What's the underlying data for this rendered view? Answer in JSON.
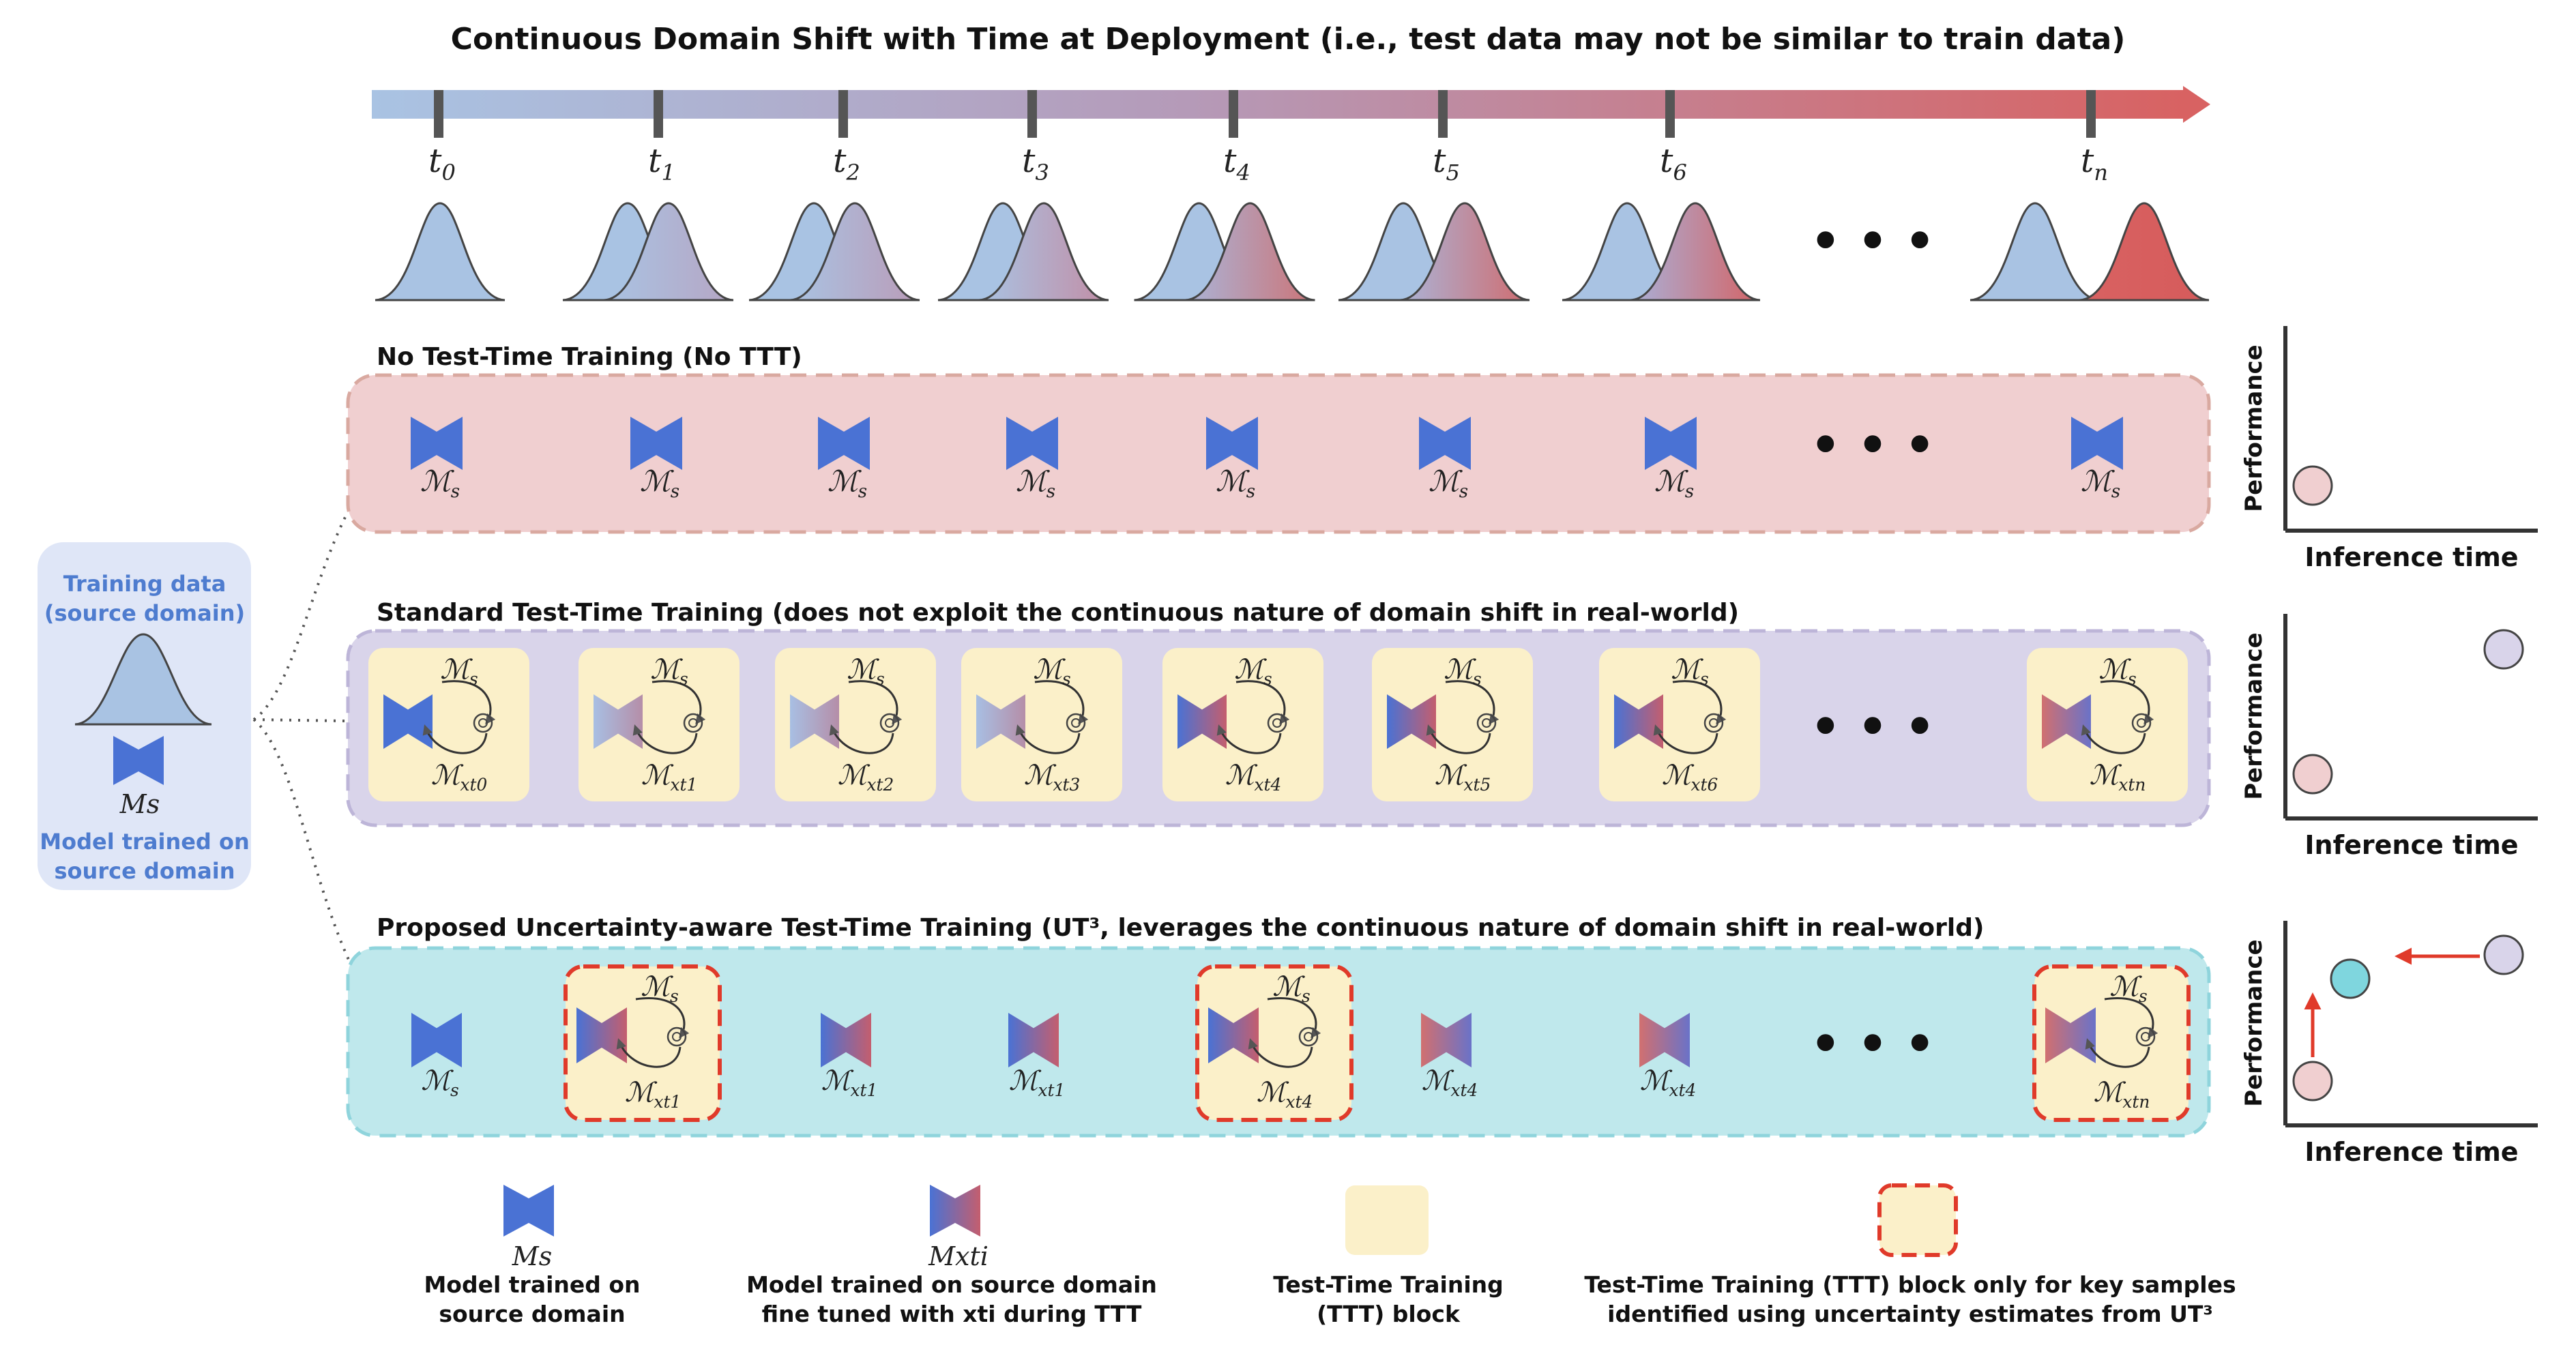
{
  "title": "Continuous Domain Shift with Time at Deployment (i.e., test data may not be similar to train data)",
  "timeline": {
    "ticks": [
      "t0",
      "t1",
      "t2",
      "t3",
      "t4",
      "t5",
      "t6",
      "tn"
    ],
    "ellipsis": "• • •"
  },
  "source_box": {
    "training_data": "Training data",
    "training_sub": "(source domain)",
    "model_symbol": "Ms",
    "model_line1": "Model trained on",
    "model_line2": "source domain"
  },
  "rows": [
    {
      "title": "No Test-Time Training (No TTT)",
      "model_labels": [
        "Ms",
        "Ms",
        "Ms",
        "Ms",
        "Ms",
        "Ms",
        "Ms",
        "Ms"
      ]
    },
    {
      "title": "Standard Test-Time Training (does not exploit the continuous nature of domain shift in real-world)",
      "top_labels": [
        "Ms",
        "Ms",
        "Ms",
        "Ms",
        "Ms",
        "Ms",
        "Ms",
        "Ms"
      ],
      "bottom_labels": [
        "Mxt0",
        "Mxt1",
        "Mxt2",
        "Mxt3",
        "Mxt4",
        "Mxt5",
        "Mxt6",
        "Mxtn"
      ]
    },
    {
      "title": "Proposed Uncertainty-aware Test-Time Training (UT³, leverages the continuous nature of domain shift in real-world)",
      "labels": [
        "Ms",
        "Mxt1",
        "Mxt1",
        "Mxt1",
        "Mxt4",
        "Mxt4",
        "Mxt4",
        "Mxtn"
      ],
      "ttt_top_label": "Ms"
    }
  ],
  "plots": {
    "ylabel": "Performance",
    "xlabel": "Inference time"
  },
  "legend": {
    "item1_symbol": "Ms",
    "item1_line1": "Model trained on",
    "item1_line2": "source domain",
    "item2_symbol": "Mxti",
    "item2_line1": "Model trained on source domain",
    "item2_line2": "fine tuned with xti during TTT",
    "item3_line1": "Test-Time Training",
    "item3_line2": "(TTT) block",
    "item4_line1": "Test-Time Training (TTT) block only for key samples",
    "item4_line2": "identified using uncertainty estimates from UT³"
  },
  "colors": {
    "source_blue": "#4a72d4",
    "shift_red": "#d65b5b",
    "row1_bg": "#f0cfd0",
    "row2_bg": "#d9d4ea",
    "row3_bg": "#bfe8ec",
    "ttt_block": "#fbf0c9",
    "highlight_border": "#e03a2a"
  }
}
